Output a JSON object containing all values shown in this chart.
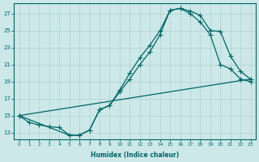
{
  "xlabel": "Humidex (Indice chaleur)",
  "bg_color": "#cce8e8",
  "grid_color": "#aacccc",
  "line_color": "#006666",
  "xlim_min": -0.5,
  "xlim_max": 23.5,
  "ylim_min": 12.2,
  "ylim_max": 28.2,
  "yticks": [
    13,
    15,
    17,
    19,
    21,
    23,
    25,
    27
  ],
  "xticks": [
    0,
    1,
    2,
    3,
    4,
    5,
    6,
    7,
    8,
    9,
    10,
    11,
    12,
    13,
    14,
    15,
    16,
    17,
    18,
    19,
    20,
    21,
    22,
    23
  ],
  "curve1_x": [
    0,
    1,
    2,
    3,
    4,
    5,
    6,
    7,
    8,
    9,
    10,
    11,
    12,
    13,
    14,
    15,
    16,
    17,
    18,
    19,
    20,
    21,
    22,
    23
  ],
  "curve1_y": [
    15.0,
    14.2,
    13.9,
    13.7,
    13.6,
    12.7,
    12.7,
    13.3,
    15.7,
    16.2,
    18.0,
    20.0,
    21.8,
    23.3,
    25.0,
    27.4,
    27.6,
    27.3,
    26.8,
    25.0,
    24.9,
    22.0,
    20.2,
    19.3
  ],
  "curve2_x": [
    0,
    5,
    6,
    7,
    8,
    9,
    10,
    11,
    12,
    13,
    14,
    15,
    16,
    17,
    18,
    19,
    20,
    21,
    22,
    23
  ],
  "curve2_y": [
    15.0,
    12.7,
    12.7,
    13.3,
    15.7,
    16.2,
    17.8,
    19.3,
    21.0,
    22.5,
    24.5,
    27.4,
    27.6,
    27.0,
    26.0,
    24.5,
    21.0,
    20.5,
    19.3,
    19.0
  ],
  "line3_x": [
    0,
    23
  ],
  "line3_y": [
    15.0,
    19.3
  ]
}
